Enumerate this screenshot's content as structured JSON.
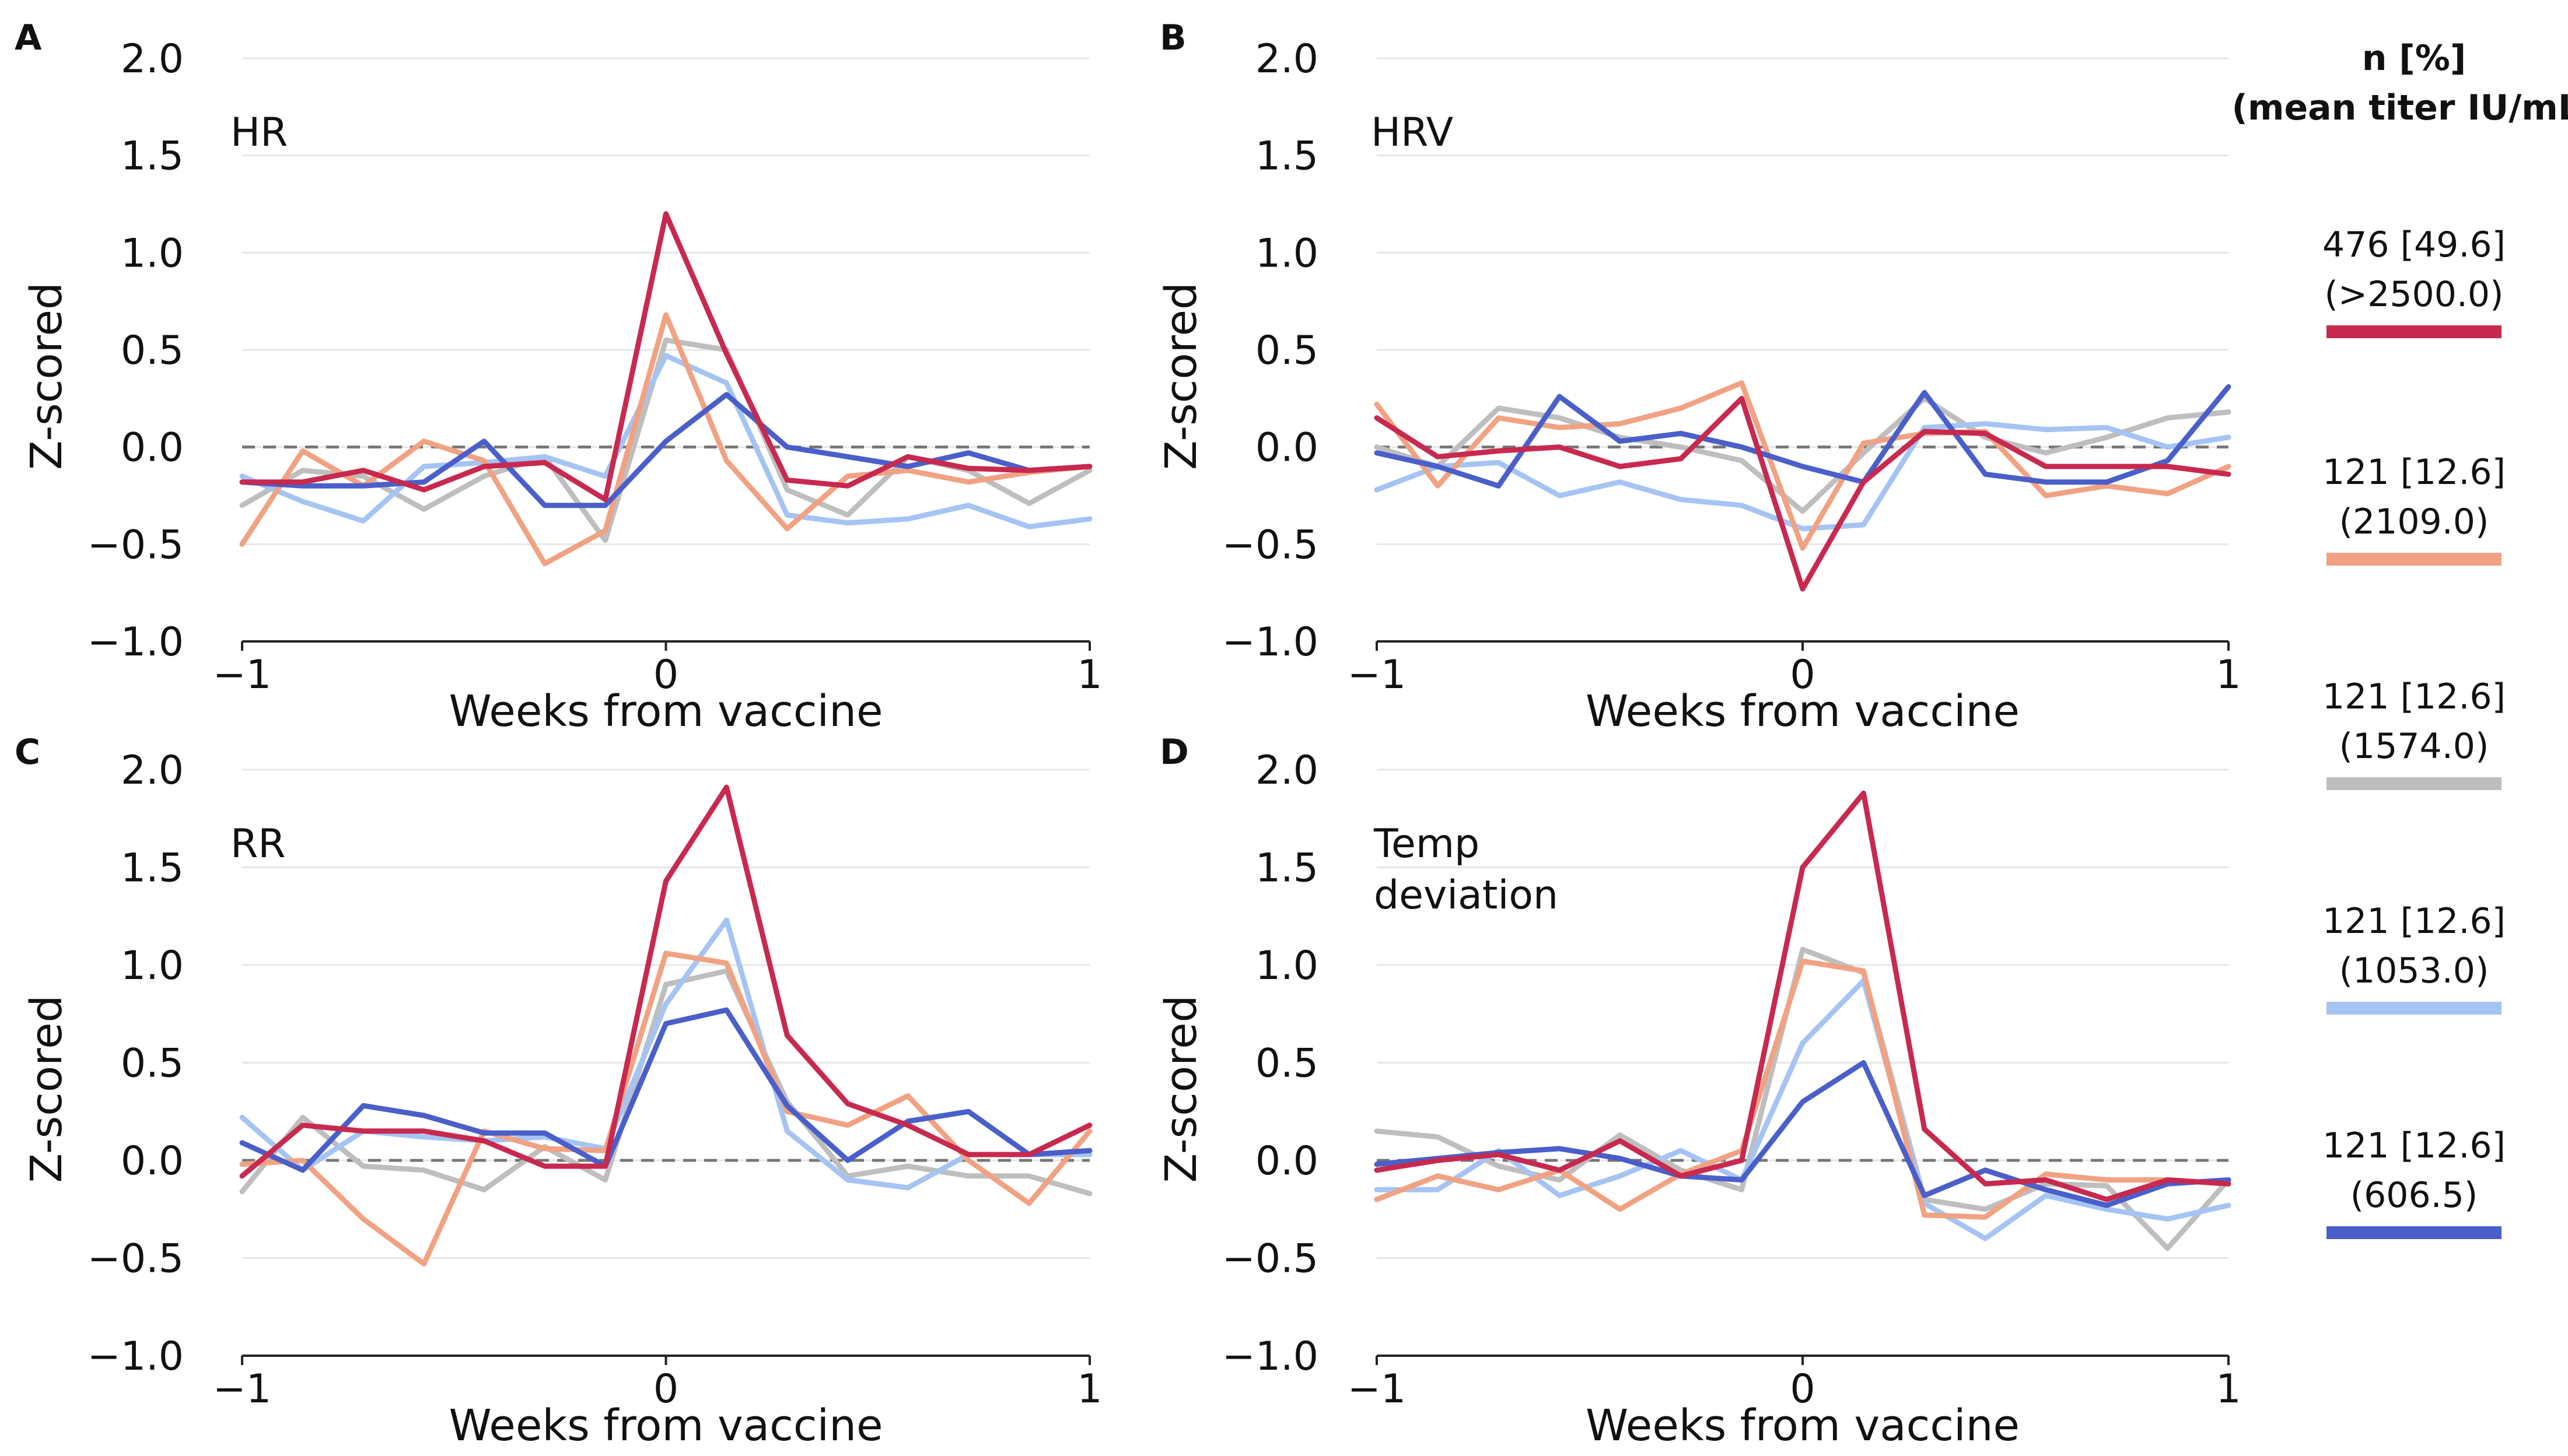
{
  "figure": {
    "legend": {
      "heading_line1": "n [%]",
      "heading_line2": "(mean titer IU/mL)",
      "entries": [
        {
          "count": "476 [49.6]",
          "titer": "(>2500.0)",
          "color": "#c8294f"
        },
        {
          "count": "121 [12.6]",
          "titer": "(2109.0)",
          "color": "#f0a283"
        },
        {
          "count": "121 [12.6]",
          "titer": "(1574.0)",
          "color": "#bebebe"
        },
        {
          "count": "121 [12.6]",
          "titer": "(1053.0)",
          "color": "#a5c4f3"
        },
        {
          "count": "121 [12.6]",
          "titer": "(606.5)",
          "color": "#4a5fc9"
        }
      ]
    }
  },
  "chart_data": [
    {
      "type": "line",
      "panel": "A",
      "title": "HR",
      "xlabel": "Weeks from vaccine",
      "ylabel": "Z-scored",
      "xlim": [
        -1,
        1
      ],
      "ylim": [
        -1.0,
        2.0
      ],
      "xticks": [
        "−1",
        "0",
        "1"
      ],
      "yticks": [
        "2.0",
        "1.5",
        "1.0",
        "0.5",
        "0.0",
        "−0.5",
        "−1.0"
      ],
      "reference_line": 0,
      "x": [
        -1.0,
        -0.857,
        -0.714,
        -0.571,
        -0.429,
        -0.286,
        -0.143,
        0.0,
        0.143,
        0.286,
        0.429,
        0.571,
        0.714,
        0.857,
        1.0
      ],
      "series": [
        {
          "name": ">2500.0",
          "values": [
            -0.18,
            -0.18,
            -0.12,
            -0.22,
            -0.1,
            -0.08,
            -0.27,
            1.2,
            0.48,
            -0.17,
            -0.2,
            -0.05,
            -0.11,
            -0.12,
            -0.1
          ]
        },
        {
          "name": "2109.0",
          "values": [
            -0.5,
            -0.02,
            -0.2,
            0.03,
            -0.07,
            -0.6,
            -0.43,
            0.68,
            -0.07,
            -0.42,
            -0.15,
            -0.12,
            -0.18,
            -0.13,
            -0.1
          ]
        },
        {
          "name": "1574.0",
          "values": [
            -0.3,
            -0.12,
            -0.15,
            -0.32,
            -0.15,
            -0.05,
            -0.48,
            0.55,
            0.5,
            -0.22,
            -0.35,
            -0.05,
            -0.12,
            -0.29,
            -0.12
          ]
        },
        {
          "name": "1053.0",
          "values": [
            -0.15,
            -0.28,
            -0.38,
            -0.1,
            -0.08,
            -0.05,
            -0.15,
            0.47,
            0.33,
            -0.35,
            -0.39,
            -0.37,
            -0.3,
            -0.41,
            -0.37
          ]
        },
        {
          "name": "606.5",
          "values": [
            -0.18,
            -0.2,
            -0.2,
            -0.18,
            0.03,
            -0.3,
            -0.3,
            0.03,
            0.27,
            0.0,
            -0.05,
            -0.1,
            -0.03,
            -0.12,
            -0.1
          ]
        }
      ]
    },
    {
      "type": "line",
      "panel": "B",
      "title": "HRV",
      "xlabel": "Weeks from vaccine",
      "ylabel": "Z-scored",
      "xlim": [
        -1,
        1
      ],
      "ylim": [
        -1.0,
        2.0
      ],
      "xticks": [
        "−1",
        "0",
        "1"
      ],
      "yticks": [
        "2.0",
        "1.5",
        "1.0",
        "0.5",
        "0.0",
        "−0.5",
        "−1.0"
      ],
      "reference_line": 0,
      "x": [
        -1.0,
        -0.857,
        -0.714,
        -0.571,
        -0.429,
        -0.286,
        -0.143,
        0.0,
        0.143,
        0.286,
        0.429,
        0.571,
        0.714,
        0.857,
        1.0
      ],
      "series": [
        {
          "name": ">2500.0",
          "values": [
            0.15,
            -0.05,
            -0.02,
            0.0,
            -0.1,
            -0.06,
            0.25,
            -0.73,
            -0.18,
            0.08,
            0.07,
            -0.1,
            -0.1,
            -0.1,
            -0.14
          ]
        },
        {
          "name": "2109.0",
          "values": [
            0.22,
            -0.2,
            0.15,
            0.1,
            0.12,
            0.2,
            0.33,
            -0.52,
            0.02,
            0.07,
            0.08,
            -0.25,
            -0.2,
            -0.24,
            -0.1
          ]
        },
        {
          "name": "1574.0",
          "values": [
            0.0,
            -0.1,
            0.2,
            0.15,
            0.05,
            0.0,
            -0.07,
            -0.33,
            -0.03,
            0.25,
            0.05,
            -0.03,
            0.05,
            0.15,
            0.18
          ]
        },
        {
          "name": "1053.0",
          "values": [
            -0.22,
            -0.1,
            -0.08,
            -0.25,
            -0.18,
            -0.27,
            -0.3,
            -0.42,
            -0.4,
            0.1,
            0.12,
            0.09,
            0.1,
            0.0,
            0.05
          ]
        },
        {
          "name": "606.5",
          "values": [
            -0.03,
            -0.1,
            -0.2,
            0.26,
            0.03,
            0.07,
            0.0,
            -0.1,
            -0.18,
            0.28,
            -0.14,
            -0.18,
            -0.18,
            -0.07,
            0.31
          ]
        }
      ]
    },
    {
      "type": "line",
      "panel": "C",
      "title": "RR",
      "xlabel": "Weeks from vaccine",
      "ylabel": "Z-scored",
      "xlim": [
        -1,
        1
      ],
      "ylim": [
        -1.0,
        2.0
      ],
      "xticks": [
        "−1",
        "0",
        "1"
      ],
      "yticks": [
        "2.0",
        "1.5",
        "1.0",
        "0.5",
        "0.0",
        "−0.5",
        "−1.0"
      ],
      "reference_line": 0,
      "x": [
        -1.0,
        -0.857,
        -0.714,
        -0.571,
        -0.429,
        -0.286,
        -0.143,
        0.0,
        0.143,
        0.286,
        0.429,
        0.571,
        0.714,
        0.857,
        1.0
      ],
      "series": [
        {
          "name": ">2500.0",
          "values": [
            -0.08,
            0.18,
            0.15,
            0.15,
            0.1,
            -0.03,
            -0.03,
            1.43,
            1.91,
            0.64,
            0.29,
            0.18,
            0.03,
            0.03,
            0.18
          ]
        },
        {
          "name": "2109.0",
          "values": [
            -0.02,
            0.0,
            -0.3,
            -0.53,
            0.15,
            0.06,
            0.05,
            1.06,
            1.01,
            0.25,
            0.18,
            0.33,
            0.0,
            -0.22,
            0.15
          ]
        },
        {
          "name": "1574.0",
          "values": [
            -0.16,
            0.22,
            -0.03,
            -0.05,
            -0.15,
            0.07,
            -0.1,
            0.9,
            0.97,
            0.3,
            -0.08,
            -0.03,
            -0.08,
            -0.08,
            -0.17
          ]
        },
        {
          "name": "1053.0",
          "values": [
            0.22,
            -0.05,
            0.15,
            0.12,
            0.1,
            0.12,
            0.06,
            0.8,
            1.23,
            0.15,
            -0.1,
            -0.14,
            0.03,
            0.03,
            0.03
          ]
        },
        {
          "name": "606.5",
          "values": [
            0.09,
            -0.05,
            0.28,
            0.23,
            0.14,
            0.14,
            -0.03,
            0.7,
            0.77,
            0.28,
            0.0,
            0.2,
            0.25,
            0.03,
            0.05
          ]
        }
      ]
    },
    {
      "type": "line",
      "panel": "D",
      "title_lines": [
        "Temp",
        "deviation"
      ],
      "xlabel": "Weeks from vaccine",
      "ylabel": "Z-scored",
      "xlim": [
        -1,
        1
      ],
      "ylim": [
        -1.0,
        2.0
      ],
      "xticks": [
        "−1",
        "0",
        "1"
      ],
      "yticks": [
        "2.0",
        "1.5",
        "1.0",
        "0.5",
        "0.0",
        "−0.5",
        "−1.0"
      ],
      "reference_line": 0,
      "x": [
        -1.0,
        -0.857,
        -0.714,
        -0.571,
        -0.429,
        -0.286,
        -0.143,
        0.0,
        0.143,
        0.286,
        0.429,
        0.571,
        0.714,
        0.857,
        1.0
      ],
      "series": [
        {
          "name": ">2500.0",
          "values": [
            -0.05,
            0.0,
            0.03,
            -0.05,
            0.1,
            -0.08,
            0.0,
            1.5,
            1.88,
            0.16,
            -0.12,
            -0.1,
            -0.2,
            -0.1,
            -0.12
          ]
        },
        {
          "name": "2109.0",
          "values": [
            -0.2,
            -0.08,
            -0.15,
            -0.05,
            -0.25,
            -0.07,
            0.05,
            1.02,
            0.97,
            -0.28,
            -0.29,
            -0.07,
            -0.1,
            -0.1,
            -0.12
          ]
        },
        {
          "name": "1574.0",
          "values": [
            0.15,
            0.12,
            -0.03,
            -0.1,
            0.13,
            -0.05,
            -0.15,
            1.08,
            0.96,
            -0.2,
            -0.25,
            -0.12,
            -0.13,
            -0.45,
            -0.1
          ]
        },
        {
          "name": "1053.0",
          "values": [
            -0.15,
            -0.15,
            0.05,
            -0.18,
            -0.08,
            0.05,
            -0.1,
            0.6,
            0.92,
            -0.22,
            -0.4,
            -0.18,
            -0.25,
            -0.3,
            -0.23
          ]
        },
        {
          "name": "606.5",
          "values": [
            -0.02,
            0.01,
            0.04,
            0.06,
            0.01,
            -0.08,
            -0.1,
            0.3,
            0.5,
            -0.18,
            -0.05,
            -0.15,
            -0.23,
            -0.12,
            -0.1
          ]
        }
      ]
    }
  ]
}
